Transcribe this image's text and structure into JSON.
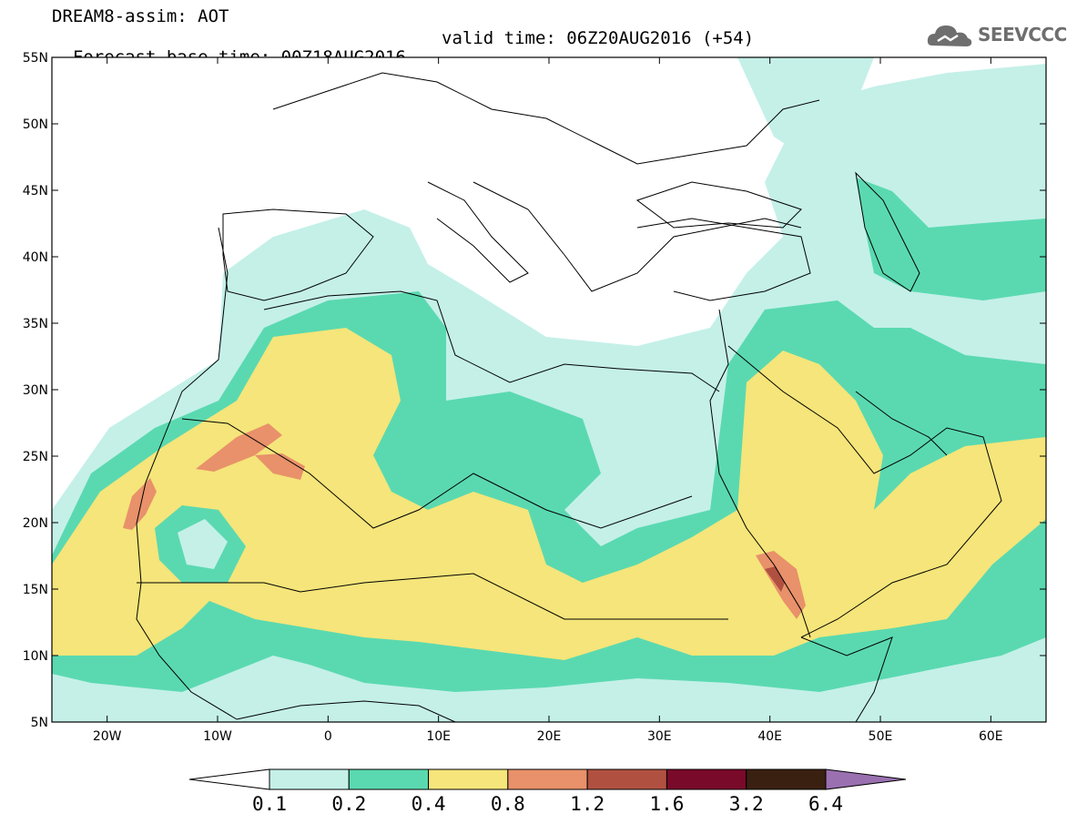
{
  "header": {
    "title_line1": "DREAM8-assim: AOT",
    "title_line2_base": "Forecast base time: 00Z18AUG2016",
    "title_line2_valid": "valid time: 06Z20AUG2016 (+54)"
  },
  "logo": {
    "text": "SEEVCCC",
    "icon": "cloud-logo-icon"
  },
  "map": {
    "projection": "lat-lon",
    "lon_range": [
      -25,
      65
    ],
    "lat_range": [
      5,
      55
    ],
    "lat_labels": [
      "55N",
      "50N",
      "45N",
      "40N",
      "35N",
      "30N",
      "25N",
      "20N",
      "15N",
      "10N",
      "5N"
    ],
    "lon_labels": [
      "20W",
      "10W",
      "0",
      "10E",
      "20E",
      "30E",
      "40E",
      "50E",
      "60E"
    ],
    "lon_values": [
      -20,
      -10,
      0,
      10,
      20,
      30,
      40,
      50,
      60
    ],
    "lat_values": [
      55,
      50,
      45,
      40,
      35,
      30,
      25,
      20,
      15,
      10,
      5
    ]
  },
  "colorbar": {
    "labels": [
      "0.1",
      "0.2",
      "0.4",
      "0.8",
      "1.2",
      "1.6",
      "3.2",
      "6.4"
    ],
    "colors": [
      "#ffffff",
      "#c4f0e8",
      "#5ad9b0",
      "#f5e57a",
      "#e8916a",
      "#b05040",
      "#7a0a2a",
      "#3a2010",
      "#9a70b0"
    ]
  },
  "colors": {
    "aot_0_1_0_2": "#c4f0e8",
    "aot_0_2_0_4": "#5ad9b0",
    "aot_0_4_0_8": "#f5e57a",
    "aot_0_8_1_2": "#e8916a",
    "aot_1_2_1_6": "#b05040"
  }
}
